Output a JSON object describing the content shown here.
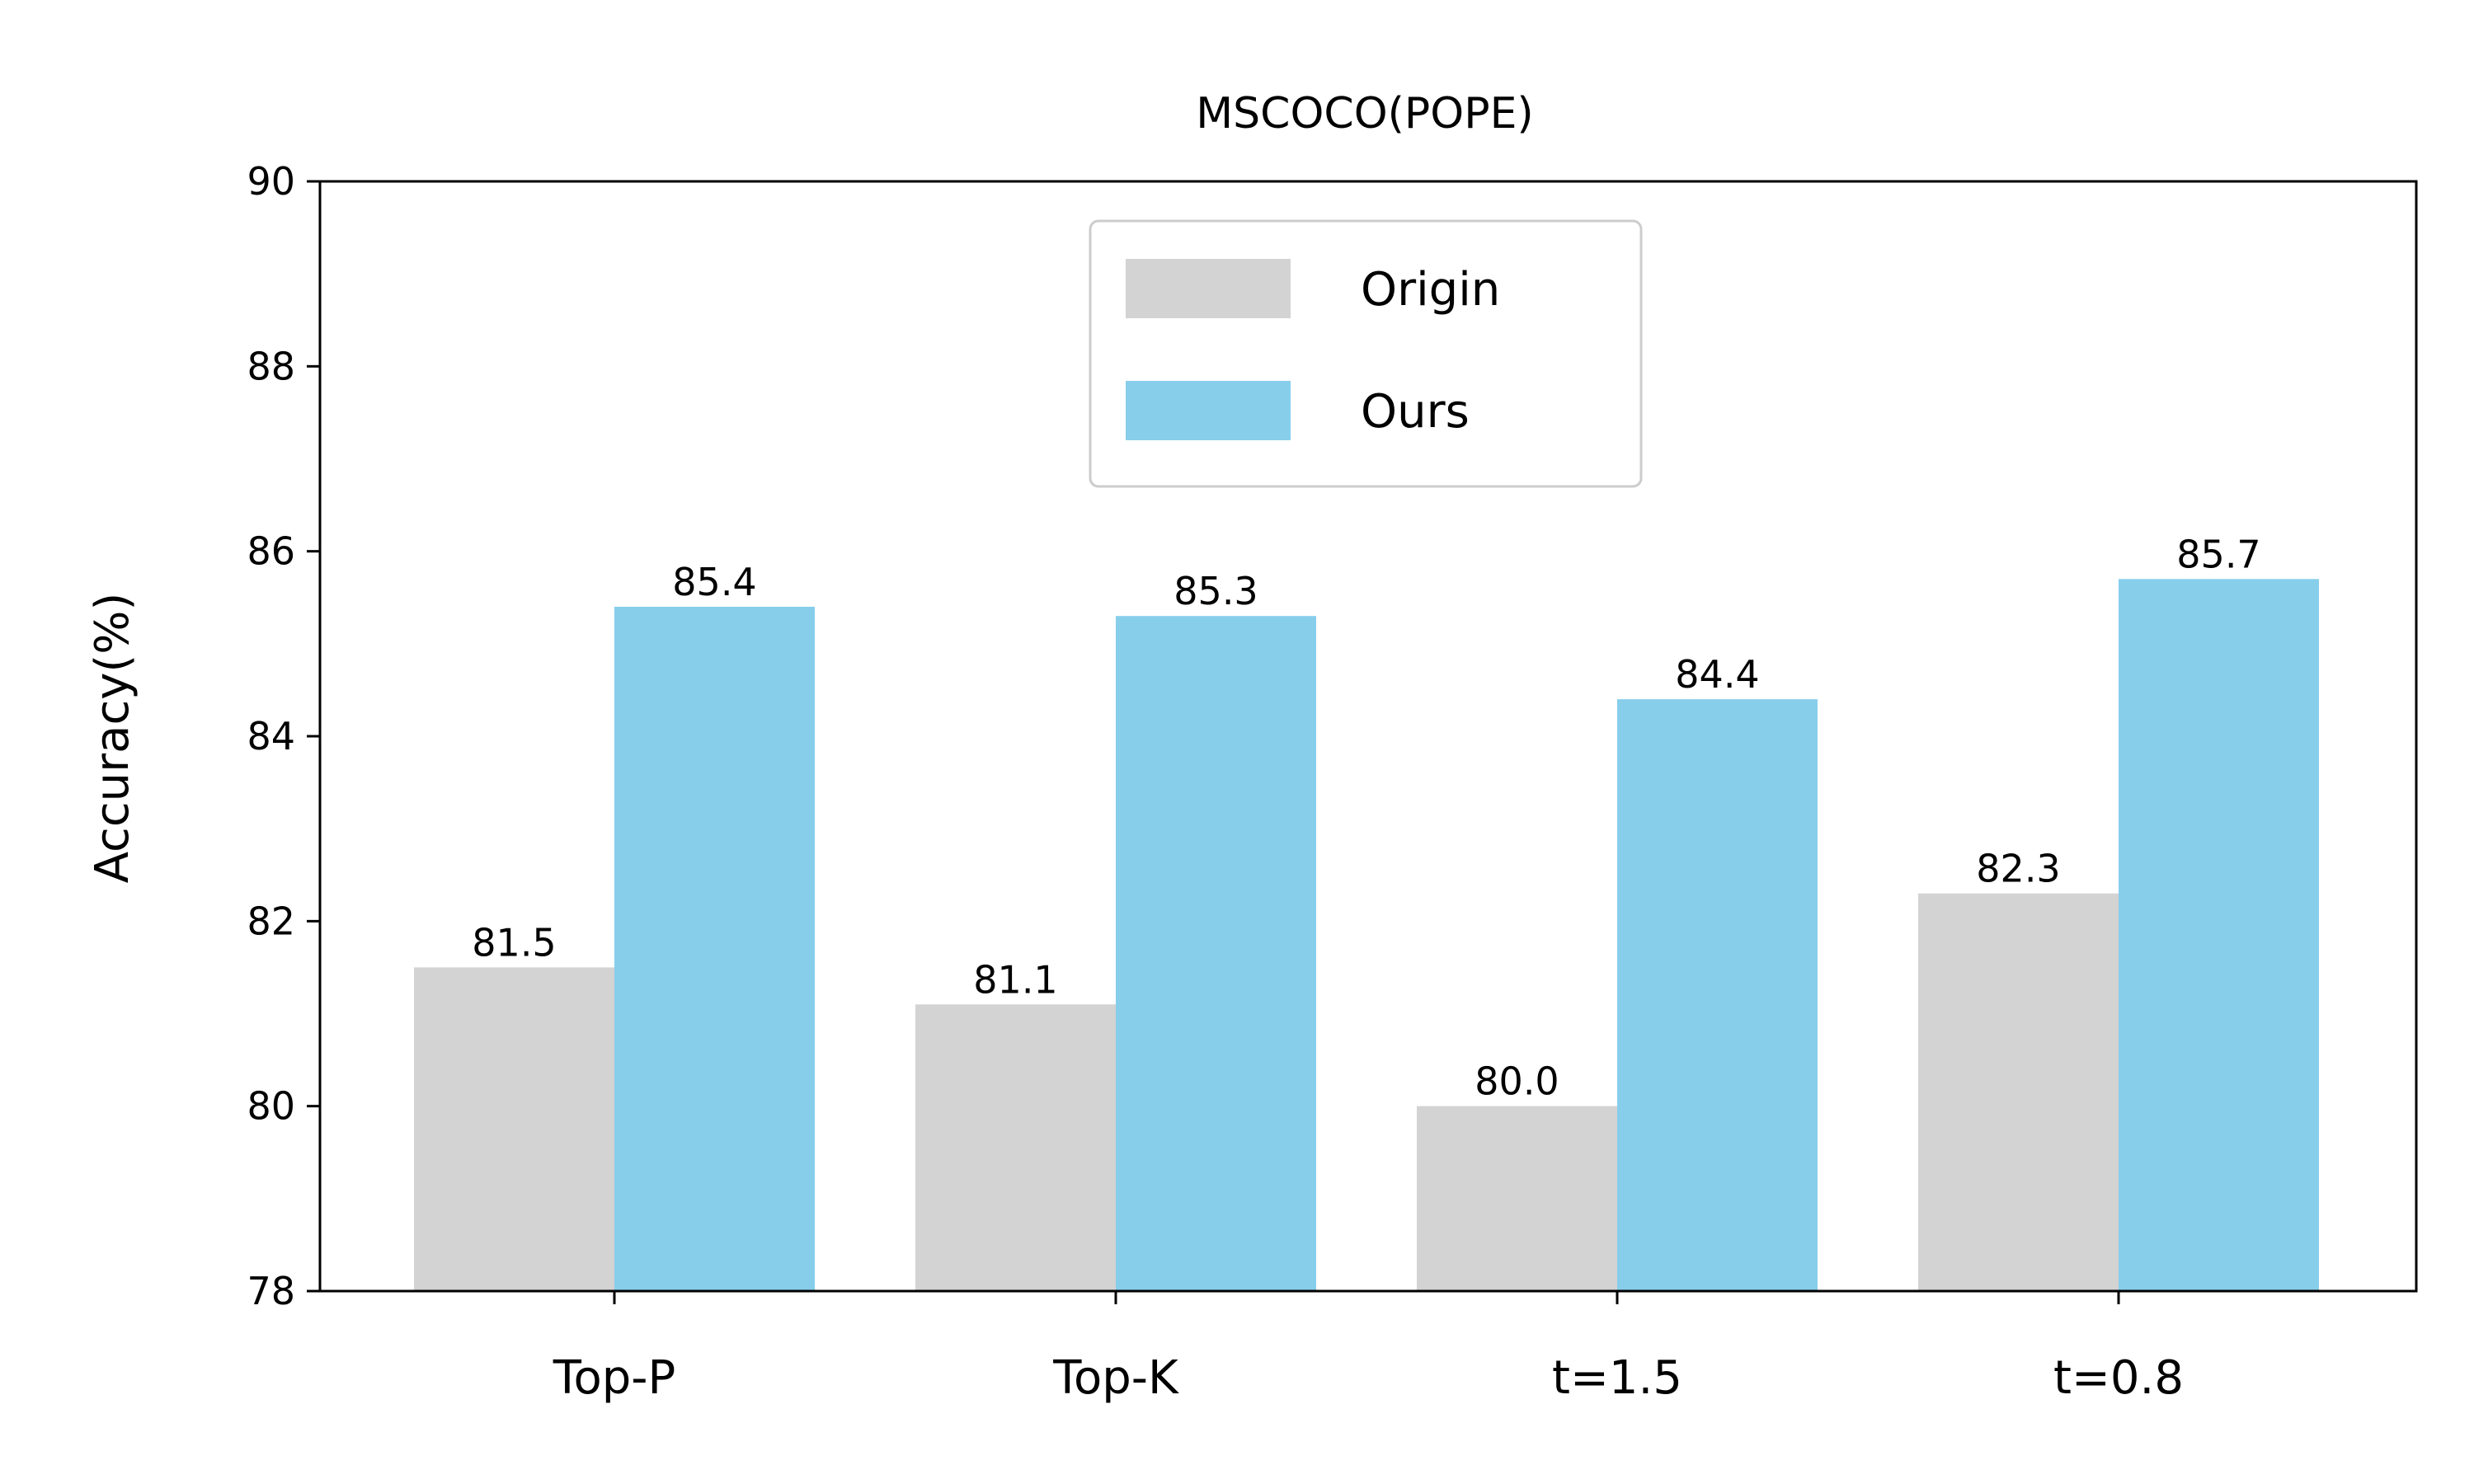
{
  "chart_data": {
    "type": "bar",
    "title": "MSCOCO(POPE)",
    "xlabel": "",
    "ylabel": "Accuracy(%)",
    "categories": [
      "Top-P",
      "Top-K",
      "t=1.5",
      "t=0.8"
    ],
    "series": [
      {
        "name": "Origin",
        "color": "#d3d3d3",
        "values": [
          81.5,
          81.1,
          80.0,
          82.3
        ],
        "labels": [
          "81.5",
          "81.1",
          "80.0",
          "82.3"
        ]
      },
      {
        "name": "Ours",
        "color": "#87ceeb",
        "values": [
          85.4,
          85.3,
          84.4,
          85.7
        ],
        "labels": [
          "85.4",
          "85.3",
          "84.4",
          "85.7"
        ]
      }
    ],
    "ylim": [
      78,
      90
    ],
    "yticks": [
      "78",
      "80",
      "82",
      "84",
      "86",
      "88",
      "90"
    ],
    "grid": false,
    "legend_position": "upper-center"
  }
}
